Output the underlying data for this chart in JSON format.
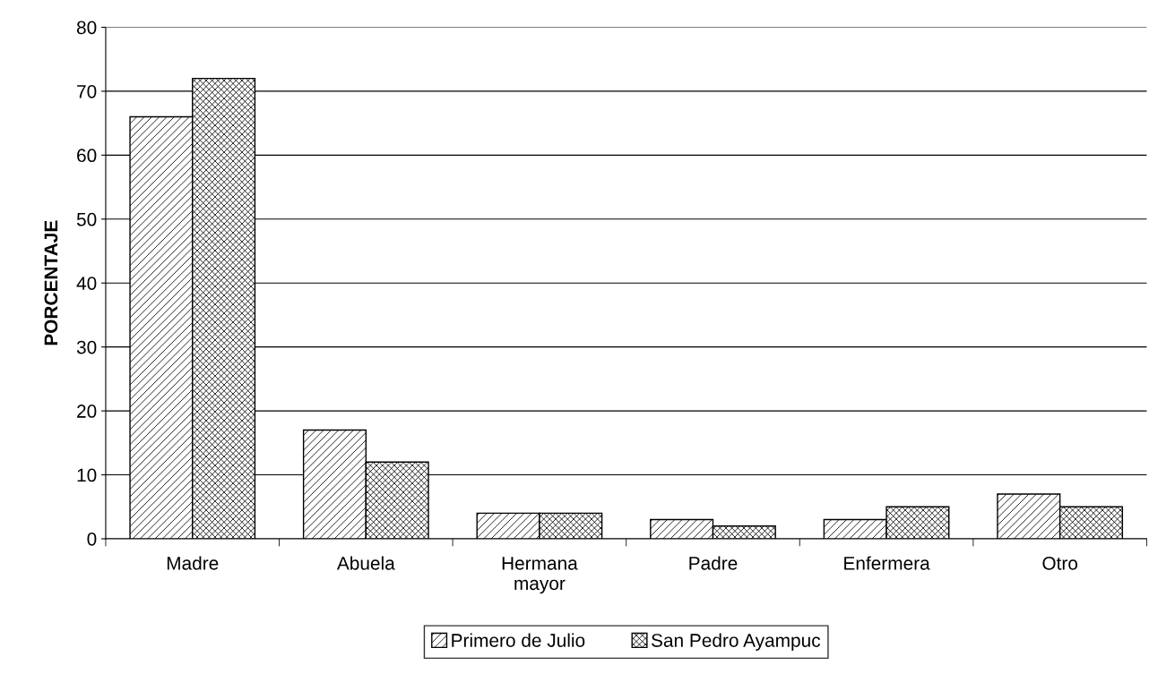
{
  "chart_data": {
    "type": "bar",
    "ylabel": "PORCENTAJE",
    "categories": [
      "Madre",
      "Abuela",
      "Hermana\nmayor",
      "Padre",
      "Enfermera",
      "Otro"
    ],
    "series": [
      {
        "name": "Primero de Julio",
        "color": "#000000",
        "values": [
          66,
          17,
          4,
          3,
          3,
          7
        ]
      },
      {
        "name": "San Pedro Ayampuc",
        "color": "#000000",
        "values": [
          72,
          12,
          4,
          2,
          5,
          5
        ]
      }
    ],
    "ylim": [
      0,
      80
    ],
    "yticks": [
      0,
      10,
      20,
      30,
      40,
      50,
      60,
      70,
      80
    ],
    "grid": "y",
    "legend": "bottom"
  }
}
